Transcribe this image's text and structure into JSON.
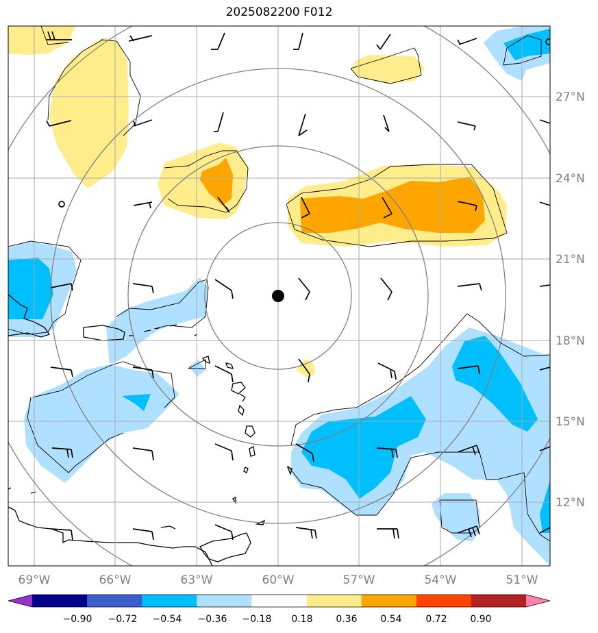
{
  "title": "2025082200 F012",
  "lon_labels": [
    "69°W",
    "66°W",
    "63°W",
    "60°W",
    "57°W",
    "54°W",
    "51°W"
  ],
  "lat_labels": [
    "27°N",
    "24°N",
    "21°N",
    "18°N",
    "15°N",
    "12°N"
  ],
  "colorbar": {
    "labels": [
      "−0.90",
      "−0.72",
      "−0.54",
      "−0.36",
      "−0.18",
      "0.18",
      "0.36",
      "0.54",
      "0.72",
      "0.90"
    ],
    "colors": [
      "#9932cc",
      "#00008b",
      "#3a5fcd",
      "#00bfff",
      "#b0e0ff",
      "#ffffff",
      "#ffec8b",
      "#ffa500",
      "#ff4500",
      "#b22222",
      "#ff82ab"
    ]
  },
  "colors": {
    "light_yellow": "#ffec8b",
    "orange": "#ffa500",
    "light_blue": "#b0e0ff",
    "deep_sky_blue": "#00bfff",
    "grid": "#aaaaaa",
    "range_rings": "#808080"
  },
  "center_marker": "storm-center"
}
